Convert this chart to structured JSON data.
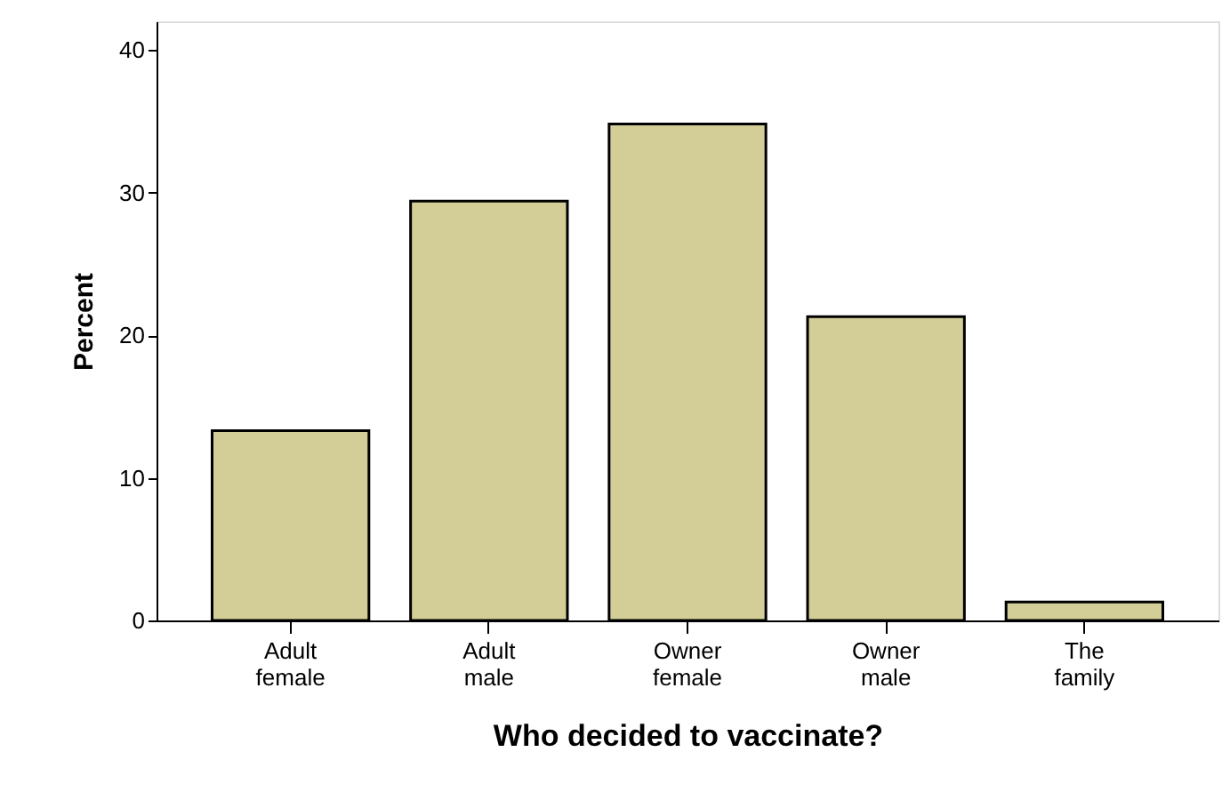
{
  "chart_data": {
    "type": "bar",
    "xlabel": "Who decided to vaccinate?",
    "ylabel": "Percent",
    "categories": [
      "Adult female",
      "Adult male",
      "Owner female",
      "Owner male",
      "The family"
    ],
    "values": [
      13.3,
      29.4,
      34.8,
      21.3,
      1.3
    ],
    "color": "#d3ce97",
    "ylim": [
      0,
      42
    ],
    "yticks": [
      0,
      10,
      20,
      30,
      40
    ],
    "grid": false
  }
}
